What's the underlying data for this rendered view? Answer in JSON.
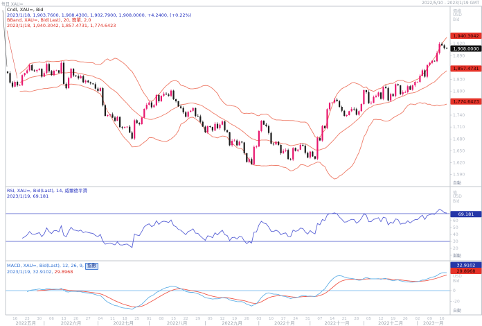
{
  "header": {
    "left": "每日 XAU=",
    "right": "2022/5/10 - 2023/1/19 GMT"
  },
  "main_panel": {
    "legend_line1": "Cndl, XAU=, Bid",
    "legend_line2": "2023/1/18, 1,903.7600, 1,908.4300, 1,902.7900, 1,908.0000, +4.2400, (+0.22%)",
    "legend_line3": "BBand, XAU=, Bid(Last), 20, 簡單, 2.0",
    "legend_line4": "2023/1/18, 1,940.3042, 1,857.4731, 1,774.6423",
    "axis": {
      "unit_label": "價格",
      "currency": "USD",
      "side": "Bid",
      "auto_label": "自動",
      "ticks": [
        {
          "label": "1,920",
          "price": 1920
        },
        {
          "label": "1,890",
          "price": 1890
        },
        {
          "label": "1,830",
          "price": 1830
        },
        {
          "label": "1,800",
          "price": 1800
        },
        {
          "label": "1,740",
          "price": 1740
        },
        {
          "label": "1,710",
          "price": 1710
        },
        {
          "label": "1,680",
          "price": 1680
        },
        {
          "label": "1,650",
          "price": 1650
        },
        {
          "label": "1,620",
          "price": 1620
        },
        {
          "label": "1,590",
          "price": 1590
        }
      ],
      "badges": [
        {
          "text": "1,940.3042",
          "price": 1940.3042,
          "bg": "#e63329",
          "fg": "#200000"
        },
        {
          "text": "1,908.0000",
          "price": 1908.0,
          "bg": "#111111",
          "fg": "#ffffff"
        },
        {
          "text": "1,857.4731",
          "price": 1857.4731,
          "bg": "#e63329",
          "fg": "#200000"
        },
        {
          "text": "1,774.6423",
          "price": 1774.6423,
          "bg": "#e63329",
          "fg": "#200000"
        }
      ]
    }
  },
  "rsi_panel": {
    "legend_line1": "RSI, XAU=, Bid(Last), 14, 威爾德平滑",
    "legend_line2": "2023/1/19, 69.181",
    "axis": {
      "unit_label": "值",
      "currency": "USD",
      "side": "Bid",
      "auto_label": "自動",
      "ticks": [
        {
          "label": "60",
          "value": 60
        },
        {
          "label": "50",
          "value": 50
        },
        {
          "label": "40",
          "value": 40
        },
        {
          "label": "30",
          "value": 30
        },
        {
          "label": "20",
          "value": 20
        },
        {
          "label": "10",
          "value": 10
        }
      ],
      "badge": {
        "text": "69.181",
        "value": 69.181,
        "bg": "#2436a8",
        "fg": "#ffffff"
      }
    }
  },
  "macd_panel": {
    "legend_line1_prefix": "MACD, XAU=, Bid(Last), 12, 26, 9,",
    "legend_ma_type": "指數",
    "legend_line2_main": "2023/1/19, 32.9102,",
    "legend_line2_signal": "29.8968",
    "axis": {
      "currency": "USD",
      "side": "Bid",
      "auto_label": "自動",
      "ticks": [
        {
          "label": "0",
          "value": 0
        },
        {
          "label": "-20",
          "value": -20
        }
      ],
      "badges": [
        {
          "text": "32.9102",
          "bg": "#2436a8",
          "fg": "#ffffff"
        },
        {
          "text": "29.8968",
          "bg": "#e63329",
          "fg": "#200000"
        }
      ]
    }
  },
  "chart_data": {
    "type": "candlestick",
    "symbol": "XAU=",
    "interval": "daily",
    "start_date": "2022-05-11",
    "end_date": "2023-01-18",
    "last_ohlc": {
      "date": "2023/1/18",
      "open": 1903.76,
      "high": 1908.43,
      "low": 1902.79,
      "close": 1908.0,
      "change": 4.24,
      "change_pct": 0.22
    },
    "closes": [
      1846,
      1822,
      1812,
      1824,
      1815,
      1816,
      1841,
      1846,
      1853,
      1866,
      1853,
      1851,
      1854,
      1857,
      1837,
      1846,
      1869,
      1851,
      1841,
      1852,
      1853,
      1847,
      1872,
      1819,
      1808,
      1834,
      1857,
      1840,
      1838,
      1833,
      1838,
      1823,
      1827,
      1823,
      1820,
      1818,
      1807,
      1801,
      1808,
      1765,
      1738,
      1740,
      1742,
      1734,
      1726,
      1735,
      1710,
      1708,
      1710,
      1711,
      1696,
      1681,
      1727,
      1720,
      1717,
      1734,
      1756,
      1766,
      1772,
      1760,
      1765,
      1791,
      1775,
      1789,
      1794,
      1792,
      1789,
      1802,
      1780,
      1775,
      1762,
      1758,
      1747,
      1736,
      1748,
      1751,
      1758,
      1738,
      1737,
      1723,
      1711,
      1697,
      1712,
      1710,
      1701,
      1718,
      1707,
      1716,
      1724,
      1702,
      1697,
      1664,
      1675,
      1676,
      1664,
      1673,
      1671,
      1644,
      1622,
      1629,
      1616,
      1660,
      1661,
      1700,
      1726,
      1716,
      1712,
      1695,
      1668,
      1666,
      1673,
      1665,
      1644,
      1650,
      1652,
      1629,
      1628,
      1657,
      1650,
      1653,
      1665,
      1663,
      1645,
      1633,
      1648,
      1636,
      1630,
      1682,
      1676,
      1712,
      1707,
      1755,
      1771,
      1772,
      1779,
      1775,
      1761,
      1751,
      1738,
      1740,
      1750,
      1756,
      1755,
      1741,
      1750,
      1768,
      1803,
      1798,
      1770,
      1771,
      1786,
      1789,
      1797,
      1781,
      1811,
      1808,
      1777,
      1793,
      1788,
      1818,
      1815,
      1793,
      1798,
      1798,
      1813,
      1804,
      1815,
      1824,
      1824,
      1839,
      1853,
      1837,
      1866,
      1872,
      1877,
      1876,
      1897,
      1920,
      1916,
      1909,
      1908
    ],
    "bollinger": {
      "period": 20,
      "type": "簡單",
      "mult": 2.0,
      "last_upper": 1940.3042,
      "last_middle": 1857.4731,
      "last_lower": 1774.6423
    },
    "rsi": {
      "period": 14,
      "smoothing": "威爾德平滑",
      "last": 69.181,
      "levels": [
        70,
        30
      ]
    },
    "macd": {
      "fast": 12,
      "slow": 26,
      "signal": 9,
      "ma_type": "指數",
      "last": 32.9102,
      "last_signal": 29.8968
    },
    "week_day_labels": [
      "16",
      "23",
      "30",
      "06",
      "13",
      "20",
      "27",
      "04",
      "11",
      "18",
      "25",
      "01",
      "08",
      "15",
      "22",
      "29",
      "05",
      "12",
      "19",
      "26",
      "03",
      "10",
      "17",
      "24",
      "31",
      "07",
      "14",
      "21",
      "28",
      "05",
      "12",
      "19",
      "26",
      "02",
      "09",
      "16"
    ],
    "month_labels": [
      "2022五月",
      "2022六月",
      "2022七月",
      "2022八月",
      "2022九月",
      "2022十月",
      "2022十一月",
      "2022十二月",
      "2023一月"
    ],
    "month_start_indices": [
      0,
      15,
      37,
      58,
      81,
      103,
      124,
      146,
      168,
      181
    ],
    "colors": {
      "candle_up": "#e8176e",
      "candle_down": "#1c1c1c",
      "bollinger": "#ee7a66",
      "rsi_line": "#5962d6",
      "rsi_levels": "#3f4cc9",
      "macd_line": "#62b0e6",
      "macd_signal": "#f0584a",
      "macd_zero": "#8cc6f0",
      "tick_text": "#b6bcc6",
      "month_text": "#99a1aa",
      "frame": "#c3c7cd"
    }
  }
}
